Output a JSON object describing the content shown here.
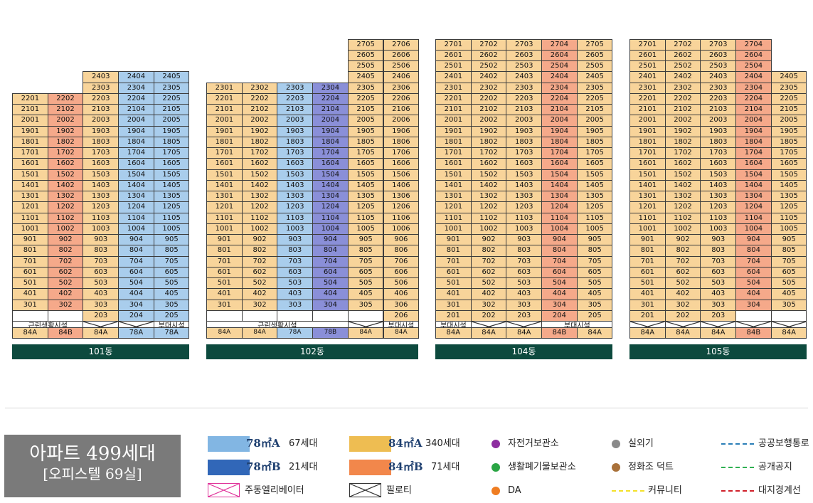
{
  "buildings": [
    {
      "name": "101동",
      "columns": [
        "84A",
        "84B",
        "84A",
        "78A",
        "78A"
      ],
      "cols": [
        {
          "type": "84A",
          "type_label": "84A",
          "floors": [
            22,
            21,
            20,
            19,
            18,
            17,
            16,
            15,
            14,
            13,
            12,
            11,
            10,
            9,
            8,
            7,
            6,
            5,
            4,
            3
          ]
        },
        {
          "type": "84B",
          "type_label": "84B",
          "floors": [
            22,
            21,
            20,
            19,
            18,
            17,
            16,
            15,
            14,
            13,
            12,
            11,
            10,
            9,
            8,
            7,
            6,
            5,
            4,
            3
          ]
        },
        {
          "type": "84A",
          "type_label": "84A",
          "floors": [
            24,
            23,
            22,
            21,
            20,
            19,
            18,
            17,
            16,
            15,
            14,
            13,
            12,
            11,
            10,
            9,
            8,
            7,
            6,
            5,
            4,
            3,
            2
          ]
        },
        {
          "type": "78A",
          "type_label": "78A",
          "floors": [
            24,
            23,
            22,
            21,
            20,
            19,
            18,
            17,
            16,
            15,
            14,
            13,
            12,
            11,
            10,
            9,
            8,
            7,
            6,
            5,
            4,
            3,
            2
          ]
        },
        {
          "type": "78A",
          "type_label": "78A",
          "floors": [
            24,
            23,
            22,
            21,
            20,
            19,
            18,
            17,
            16,
            15,
            14,
            13,
            12,
            11,
            10,
            9,
            8,
            7,
            6,
            5,
            4,
            3,
            2
          ]
        }
      ],
      "ground_labels": [
        "근린생활시설",
        "부대시설"
      ]
    },
    {
      "name": "102동",
      "cols": [
        {
          "type": "84A",
          "type_label": "84A",
          "floors": [
            23,
            22,
            21,
            20,
            19,
            18,
            17,
            16,
            15,
            14,
            13,
            12,
            11,
            10,
            9,
            8,
            7,
            6,
            5,
            4,
            3
          ]
        },
        {
          "type": "84A",
          "type_label": "84A",
          "floors": [
            23,
            22,
            21,
            20,
            19,
            18,
            17,
            16,
            15,
            14,
            13,
            12,
            11,
            10,
            9,
            8,
            7,
            6,
            5,
            4,
            3
          ]
        },
        {
          "type": "78A",
          "type_label": "78A",
          "floors": [
            23,
            22,
            21,
            20,
            19,
            18,
            17,
            16,
            15,
            14,
            13,
            12,
            11,
            10,
            9,
            8,
            7,
            6,
            5,
            4,
            3
          ]
        },
        {
          "type": "78B",
          "type_label": "78B",
          "floors": [
            23,
            22,
            21,
            20,
            19,
            18,
            17,
            16,
            15,
            14,
            13,
            12,
            11,
            10,
            9,
            8,
            7,
            6,
            5,
            4,
            3
          ]
        },
        {
          "type": "84A",
          "type_label": "84A",
          "floors": [
            27,
            26,
            25,
            24,
            23,
            22,
            21,
            20,
            19,
            18,
            17,
            16,
            15,
            14,
            13,
            12,
            11,
            10,
            9,
            8,
            7,
            6,
            5,
            4,
            3
          ]
        },
        {
          "type": "84A",
          "type_label": "84A",
          "floors": [
            27,
            26,
            25,
            24,
            23,
            22,
            21,
            20,
            19,
            18,
            17,
            16,
            15,
            14,
            13,
            12,
            11,
            10,
            9,
            8,
            7,
            6,
            5,
            4,
            3,
            2
          ]
        }
      ],
      "ground_labels": [
        "근린생활시설",
        "부대시설"
      ]
    },
    {
      "name": "104동",
      "cols": [
        {
          "type": "84A",
          "type_label": "84A",
          "floors": [
            27,
            26,
            25,
            24,
            23,
            22,
            21,
            20,
            19,
            18,
            17,
            16,
            15,
            14,
            13,
            12,
            11,
            10,
            9,
            8,
            7,
            6,
            5,
            4,
            3,
            2
          ]
        },
        {
          "type": "84A",
          "type_label": "84A",
          "floors": [
            27,
            26,
            25,
            24,
            23,
            22,
            21,
            20,
            19,
            18,
            17,
            16,
            15,
            14,
            13,
            12,
            11,
            10,
            9,
            8,
            7,
            6,
            5,
            4,
            3,
            2
          ]
        },
        {
          "type": "84A",
          "type_label": "84A",
          "floors": [
            27,
            26,
            25,
            24,
            23,
            22,
            21,
            20,
            19,
            18,
            17,
            16,
            15,
            14,
            13,
            12,
            11,
            10,
            9,
            8,
            7,
            6,
            5,
            4,
            3,
            2
          ]
        },
        {
          "type": "84B",
          "type_label": "84B",
          "floors": [
            27,
            26,
            25,
            24,
            23,
            22,
            21,
            20,
            19,
            18,
            17,
            16,
            15,
            14,
            13,
            12,
            11,
            10,
            9,
            8,
            7,
            6,
            5,
            4,
            3,
            2
          ]
        },
        {
          "type": "84A",
          "type_label": "84A",
          "floors": [
            27,
            26,
            25,
            24,
            23,
            22,
            21,
            20,
            19,
            18,
            17,
            16,
            15,
            14,
            13,
            12,
            11,
            10,
            9,
            8,
            7,
            6,
            5,
            4,
            3,
            2
          ]
        }
      ],
      "ground_labels": [
        "부대시설",
        "부대시설"
      ]
    },
    {
      "name": "105동",
      "cols": [
        {
          "type": "84A",
          "type_label": "84A",
          "floors": [
            27,
            26,
            25,
            24,
            23,
            22,
            21,
            20,
            19,
            18,
            17,
            16,
            15,
            14,
            13,
            12,
            11,
            10,
            9,
            8,
            7,
            6,
            5,
            4,
            3,
            2
          ]
        },
        {
          "type": "84A",
          "type_label": "84A",
          "floors": [
            27,
            26,
            25,
            24,
            23,
            22,
            21,
            20,
            19,
            18,
            17,
            16,
            15,
            14,
            13,
            12,
            11,
            10,
            9,
            8,
            7,
            6,
            5,
            4,
            3,
            2
          ]
        },
        {
          "type": "84A",
          "type_label": "84A",
          "floors": [
            27,
            26,
            25,
            24,
            23,
            22,
            21,
            20,
            19,
            18,
            17,
            16,
            15,
            14,
            13,
            12,
            11,
            10,
            9,
            8,
            7,
            6,
            5,
            4,
            3,
            2
          ]
        },
        {
          "type": "84B",
          "type_label": "84B",
          "floors": [
            27,
            26,
            25,
            24,
            23,
            22,
            21,
            20,
            19,
            18,
            17,
            16,
            15,
            14,
            13,
            12,
            11,
            10,
            9,
            8,
            7,
            6,
            5,
            4,
            3
          ]
        },
        {
          "type": "84A",
          "type_label": "84A",
          "floors": [
            24,
            23,
            22,
            21,
            20,
            19,
            18,
            17,
            16,
            15,
            14,
            13,
            12,
            11,
            10,
            9,
            8,
            7,
            6,
            5,
            4,
            3
          ]
        }
      ],
      "ground_labels": []
    }
  ],
  "summary": {
    "line1": "아파트 499세대",
    "line2": "[오피스텔 69실]"
  },
  "legend": {
    "a78": {
      "unit": "78㎡A",
      "count": "67세대",
      "color": "#a9cdec"
    },
    "b78": {
      "unit": "78㎡B",
      "count": "21세대",
      "color": "#3167b8"
    },
    "a84": {
      "unit": "84㎡A",
      "count": "340세대",
      "color": "#eebd52"
    },
    "b84": {
      "unit": "84㎡B",
      "count": "71세대",
      "color": "#f2874b"
    },
    "elevator": "주동엘리베이터",
    "piloti": "필로티",
    "bike": "자전거보관소",
    "waste": "생활폐기물보관소",
    "da": "DA",
    "outdoor_unit": "실외기",
    "septic_duct": "정화조 덕트",
    "community": "커뮤니티",
    "public_walk": "공공보행통로",
    "public_space": "공개공지",
    "boundary": "대지경계선"
  }
}
